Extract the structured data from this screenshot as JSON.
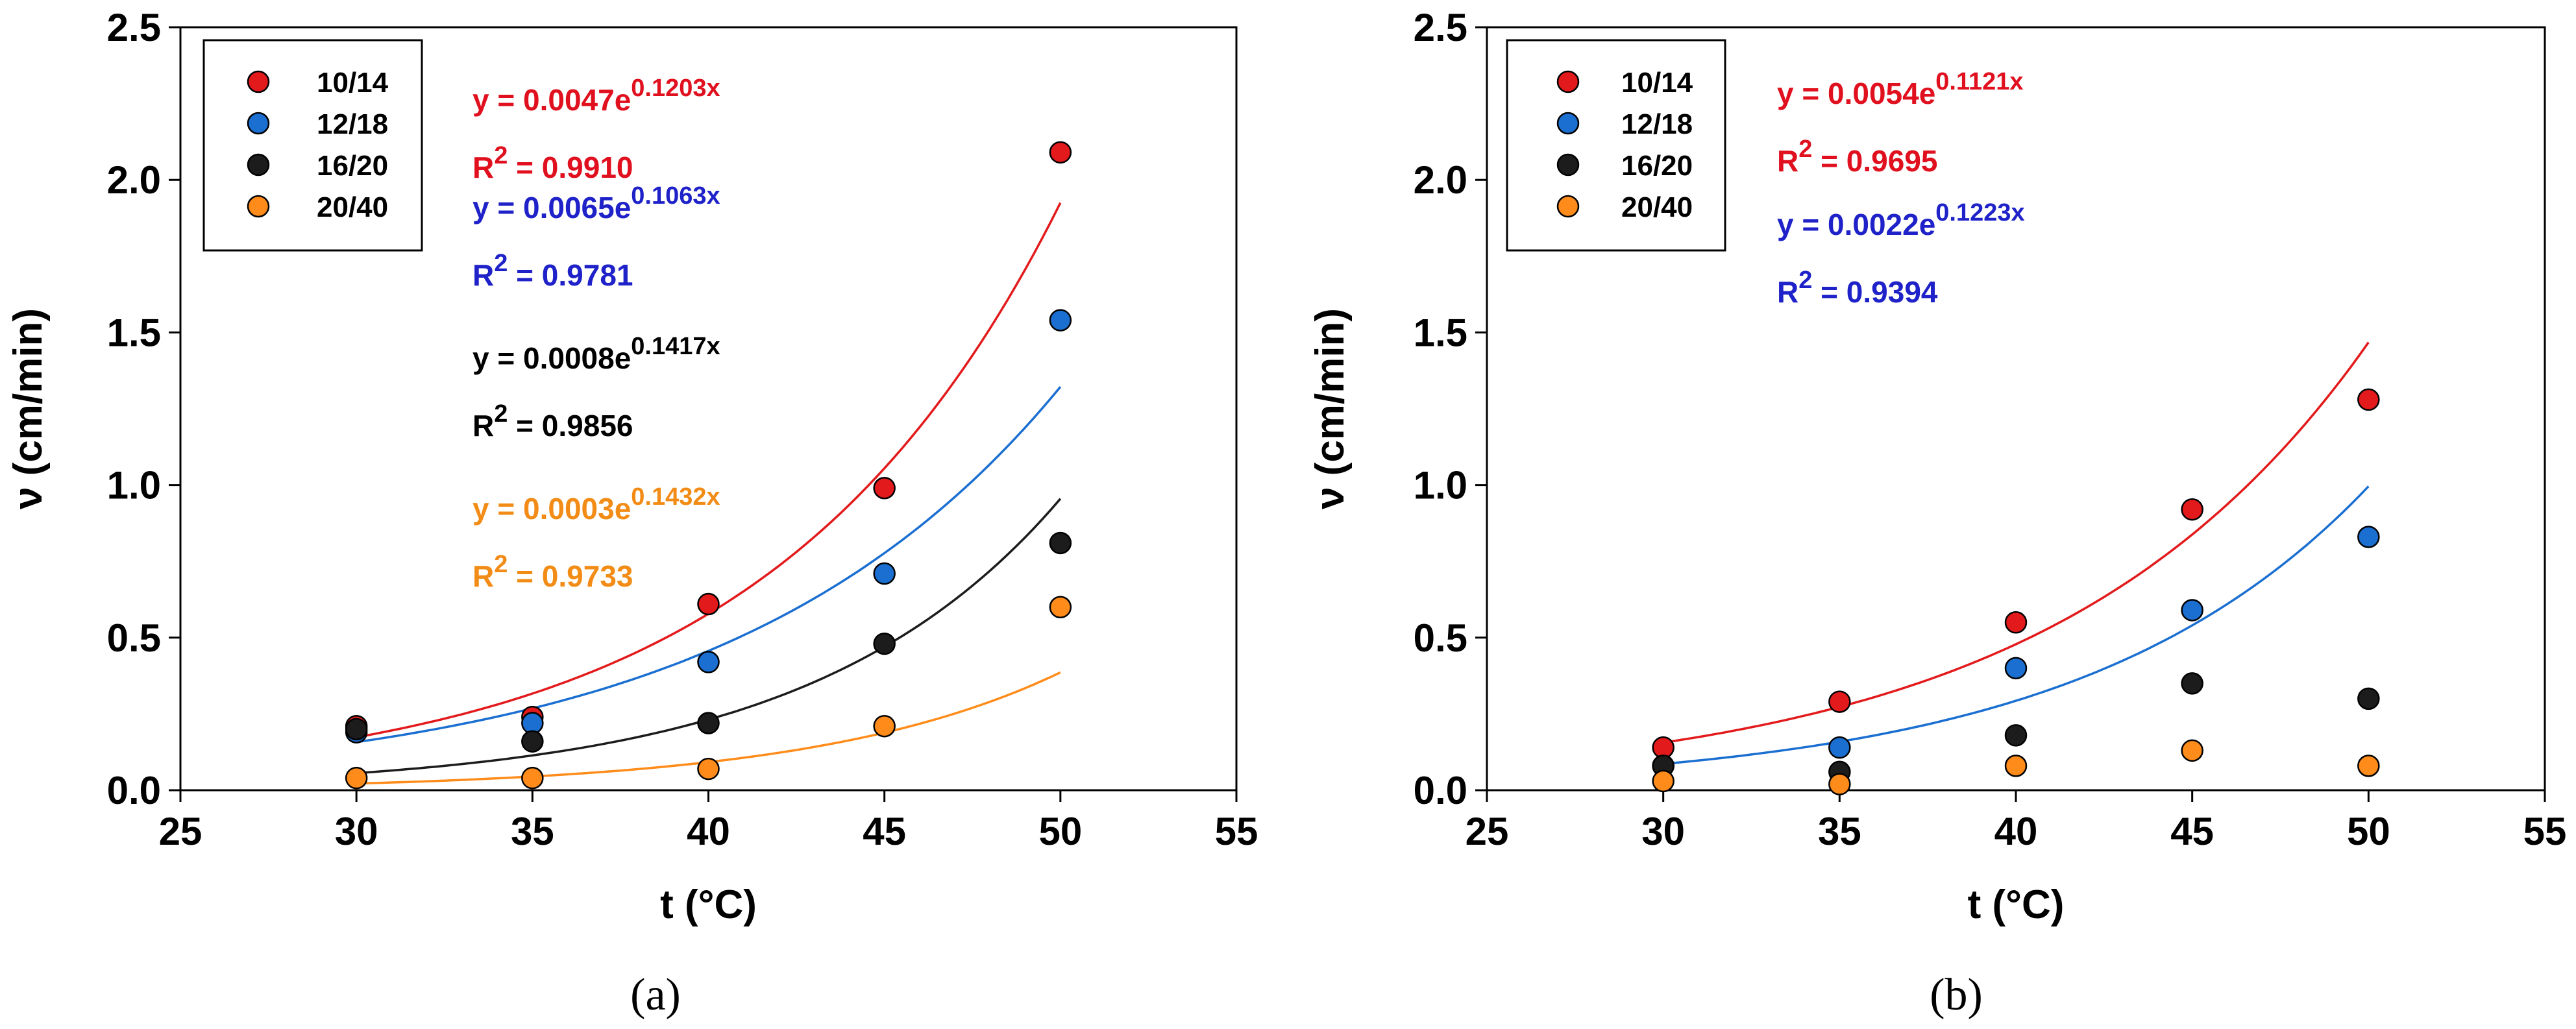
{
  "chart_data": [
    {
      "type": "scatter",
      "panel_label": "(a)",
      "xlabel": "t (°C)",
      "ylabel": "ν (cm/min)",
      "xlim": [
        25,
        55
      ],
      "ylim": [
        0,
        2.5
      ],
      "xticks": [
        "25",
        "30",
        "35",
        "40",
        "45",
        "50",
        "55"
      ],
      "yticks": [
        "0.0",
        "0.5",
        "1.0",
        "1.5",
        "2.0",
        "2.5"
      ],
      "grid": false,
      "legend_position": "top-left",
      "series": [
        {
          "name": "10/14",
          "color": "#e31a1c",
          "x": [
            30,
            35,
            40,
            45,
            50
          ],
          "y": [
            0.21,
            0.24,
            0.61,
            0.99,
            2.09
          ],
          "fit": {
            "a": 0.0047,
            "b": 0.1203,
            "eq_pre": "y = 0.0047e",
            "eq_exp": "0.1203x",
            "r2_pre": "R",
            "r2_sup": "2",
            "r2_post": " = 0.9910"
          }
        },
        {
          "name": "12/18",
          "color": "#1a6fd1",
          "x": [
            30,
            35,
            40,
            45,
            50
          ],
          "y": [
            0.19,
            0.22,
            0.42,
            0.71,
            1.54
          ],
          "fit": {
            "a": 0.0065,
            "b": 0.1063,
            "eq_pre": "y = 0.0065e",
            "eq_exp": "0.1063x",
            "r2_pre": "R",
            "r2_sup": "2",
            "r2_post": " = 0.9781"
          }
        },
        {
          "name": "16/20",
          "color": "#1c1c1c",
          "x": [
            30,
            35,
            40,
            45,
            50
          ],
          "y": [
            0.2,
            0.16,
            0.22,
            0.48,
            0.81
          ],
          "fit": {
            "a": 0.0008,
            "b": 0.1417,
            "eq_pre": "y = 0.0008e",
            "eq_exp": "0.1417x",
            "r2_pre": "R",
            "r2_sup": "2",
            "r2_post": " = 0.9856"
          }
        },
        {
          "name": "20/40",
          "color": "#ff8c1a",
          "x": [
            30,
            35,
            40,
            45,
            50
          ],
          "y": [
            0.04,
            0.04,
            0.07,
            0.21,
            0.6
          ],
          "fit": {
            "a": 0.0003,
            "b": 0.1432,
            "eq_pre": "y = 0.0003e",
            "eq_exp": "0.1432x",
            "r2_pre": "R",
            "r2_sup": "2",
            "r2_post": " = 0.9733"
          }
        }
      ]
    },
    {
      "type": "scatter",
      "panel_label": "(b)",
      "xlabel": "t (°C)",
      "ylabel": "ν (cm/min)",
      "xlim": [
        25,
        55
      ],
      "ylim": [
        0,
        2.5
      ],
      "xticks": [
        "25",
        "30",
        "35",
        "40",
        "45",
        "50",
        "55"
      ],
      "yticks": [
        "0.0",
        "0.5",
        "1.0",
        "1.5",
        "2.0",
        "2.5"
      ],
      "grid": false,
      "legend_position": "top-left",
      "series": [
        {
          "name": "10/14",
          "color": "#e31a1c",
          "x": [
            30,
            35,
            40,
            45,
            50
          ],
          "y": [
            0.14,
            0.29,
            0.55,
            0.92,
            1.28
          ],
          "fit": {
            "a": 0.0054,
            "b": 0.1121,
            "eq_pre": "y = 0.0054e",
            "eq_exp": "0.1121x",
            "r2_pre": "R",
            "r2_sup": "2",
            "r2_post": " = 0.9695"
          }
        },
        {
          "name": "12/18",
          "color": "#1a6fd1",
          "x": [
            30,
            35,
            40,
            45,
            50
          ],
          "y": [
            0.08,
            0.14,
            0.4,
            0.59,
            0.83
          ],
          "fit": {
            "a": 0.0022,
            "b": 0.1223,
            "eq_pre": "y = 0.0022e",
            "eq_exp": "0.1223x",
            "r2_pre": "R",
            "r2_sup": "2",
            "r2_post": " = 0.9394"
          }
        },
        {
          "name": "16/20",
          "color": "#1c1c1c",
          "x": [
            30,
            35,
            40,
            45,
            50
          ],
          "y": [
            0.08,
            0.06,
            0.18,
            0.35,
            0.3
          ],
          "fit": null
        },
        {
          "name": "20/40",
          "color": "#ff8c1a",
          "x": [
            30,
            35,
            40,
            45,
            50
          ],
          "y": [
            0.03,
            0.02,
            0.08,
            0.13,
            0.08
          ],
          "fit": null
        }
      ]
    }
  ]
}
